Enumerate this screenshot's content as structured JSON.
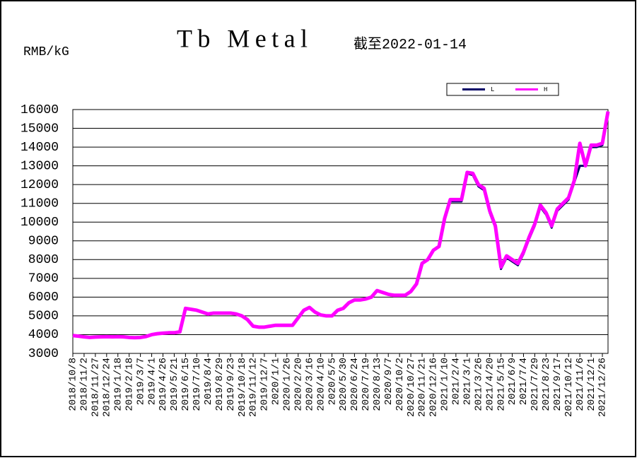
{
  "chart_data": {
    "type": "line",
    "title": "Tb Metal",
    "subtitle": "截至2022-01-14",
    "y_label": "RMB/kG",
    "categories": [
      "2018/10/8",
      null,
      "2018/11/2",
      null,
      "2018/11/27",
      null,
      "2018/12/24",
      null,
      "2019/1/18",
      null,
      "2019/2/18",
      null,
      "2019/3/7",
      null,
      "2019/4/1",
      null,
      "2019/4/26",
      null,
      "2019/5/21",
      null,
      "2019/6/15",
      null,
      "2019/7/10",
      null,
      "2019/8/4",
      null,
      "2019/8/29",
      null,
      "2019/9/23",
      null,
      "2019/10/18",
      null,
      "2019/11/12",
      null,
      "2019/12/7",
      null,
      "2020/1/1",
      null,
      "2020/1/26",
      null,
      "2020/2/20",
      null,
      "2020/3/16",
      null,
      "2020/4/10",
      null,
      "2020/5/5",
      null,
      "2020/5/30",
      null,
      "2020/6/24",
      null,
      "2020/7/19",
      null,
      "2020/8/13",
      null,
      "2020/9/7",
      null,
      "2020/10/2",
      null,
      "2020/10/27",
      null,
      "2020/11/21",
      null,
      "2020/12/16",
      null,
      "2021/1/10",
      null,
      "2021/2/4",
      null,
      "2021/3/1",
      null,
      "2021/3/26",
      null,
      "2021/4/20",
      null,
      "2021/5/15",
      null,
      "2021/6/9",
      null,
      "2021/7/4",
      null,
      "2021/7/29",
      null,
      "2021/8/23",
      null,
      "2021/9/17",
      null,
      "2021/10/12",
      null,
      "2021/11/6",
      null,
      "2021/12/1",
      null,
      "2021/12/26",
      null
    ],
    "series": [
      {
        "name": "L",
        "color": "#000066",
        "width": 3,
        "values": [
          3950,
          3920,
          3880,
          3850,
          3870,
          3880,
          3890,
          3880,
          3890,
          3880,
          3850,
          3840,
          3850,
          3900,
          4000,
          4050,
          4080,
          4100,
          4100,
          4150,
          5400,
          5350,
          5300,
          5200,
          5100,
          5150,
          5150,
          5150,
          5150,
          5100,
          5000,
          4800,
          4450,
          4400,
          4400,
          4450,
          4500,
          4500,
          4500,
          4500,
          4900,
          5300,
          5450,
          5200,
          5050,
          5000,
          5000,
          5300,
          5400,
          5700,
          5850,
          5850,
          5900,
          6000,
          6350,
          6250,
          6150,
          6100,
          6100,
          6100,
          6300,
          6700,
          7800,
          8000,
          8500,
          8700,
          10200,
          11100,
          11100,
          11100,
          12600,
          12500,
          11900,
          11700,
          10500,
          9700,
          7500,
          8100,
          7900,
          7700,
          8300,
          9100,
          9800,
          10800,
          10400,
          9700,
          10600,
          10900,
          11200,
          12100,
          13000,
          13000,
          14000,
          14000,
          14100,
          15800
        ]
      },
      {
        "name": "H",
        "color": "#ff00ff",
        "width": 5,
        "values": [
          3950,
          3920,
          3880,
          3850,
          3870,
          3880,
          3890,
          3880,
          3890,
          3880,
          3850,
          3840,
          3850,
          3900,
          4000,
          4050,
          4080,
          4100,
          4100,
          4150,
          5400,
          5350,
          5300,
          5200,
          5100,
          5150,
          5150,
          5150,
          5150,
          5100,
          5000,
          4800,
          4450,
          4400,
          4400,
          4450,
          4500,
          4500,
          4500,
          4500,
          4900,
          5300,
          5450,
          5200,
          5050,
          5000,
          5000,
          5300,
          5400,
          5700,
          5850,
          5850,
          5900,
          6000,
          6350,
          6250,
          6150,
          6100,
          6100,
          6100,
          6300,
          6700,
          7800,
          8000,
          8500,
          8700,
          10200,
          11200,
          11200,
          11200,
          12650,
          12600,
          12000,
          11800,
          10600,
          9800,
          7600,
          8200,
          8000,
          7800,
          8400,
          9200,
          9900,
          10900,
          10500,
          9800,
          10700,
          11000,
          11300,
          12200,
          14200,
          13000,
          14100,
          14100,
          14200,
          15900
        ]
      }
    ],
    "ylim": [
      3000,
      16000
    ],
    "yticks": [
      3000,
      4000,
      5000,
      6000,
      7000,
      8000,
      9000,
      10000,
      11000,
      12000,
      13000,
      14000,
      15000,
      16000
    ],
    "grid": true,
    "legend": "top-right"
  }
}
